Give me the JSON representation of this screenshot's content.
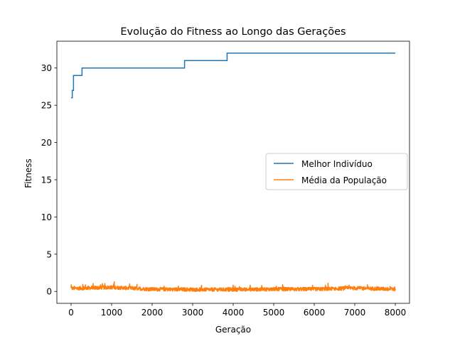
{
  "chart_data": {
    "type": "line",
    "title": "Evolução do Fitness ao Longo das Gerações",
    "xlabel": "Geração",
    "ylabel": "Fitness",
    "xlim": [
      -350,
      8350
    ],
    "ylim": [
      -1.6,
      33.6
    ],
    "xticks": [
      0,
      1000,
      2000,
      3000,
      4000,
      5000,
      6000,
      7000,
      8000
    ],
    "yticks": [
      0,
      5,
      10,
      15,
      20,
      25,
      30
    ],
    "xtick_labels": [
      "0",
      "1000",
      "2000",
      "3000",
      "4000",
      "5000",
      "6000",
      "7000",
      "8000"
    ],
    "ytick_labels": [
      "0",
      "5",
      "10",
      "15",
      "20",
      "25",
      "30"
    ],
    "grid": false,
    "legend_position": "center-right",
    "series": [
      {
        "name": "Melhor Indivíduo",
        "color": "#1f77b4",
        "style": "step",
        "steps": [
          [
            0,
            26
          ],
          [
            30,
            27
          ],
          [
            60,
            29
          ],
          [
            270,
            30
          ],
          [
            2800,
            31
          ],
          [
            3850,
            32
          ],
          [
            8000,
            32
          ]
        ]
      },
      {
        "name": "Média da População",
        "color": "#ff7f0e",
        "style": "noise",
        "x_range": [
          0,
          8000
        ],
        "baseline": [
          [
            0,
            0.4
          ],
          [
            1000,
            0.55
          ],
          [
            2000,
            0.3
          ],
          [
            3000,
            0.25
          ],
          [
            4000,
            0.25
          ],
          [
            5000,
            0.3
          ],
          [
            6000,
            0.3
          ],
          [
            7000,
            0.45
          ],
          [
            8000,
            0.3
          ]
        ],
        "y_min": 0.0,
        "y_max": 1.3
      }
    ]
  }
}
